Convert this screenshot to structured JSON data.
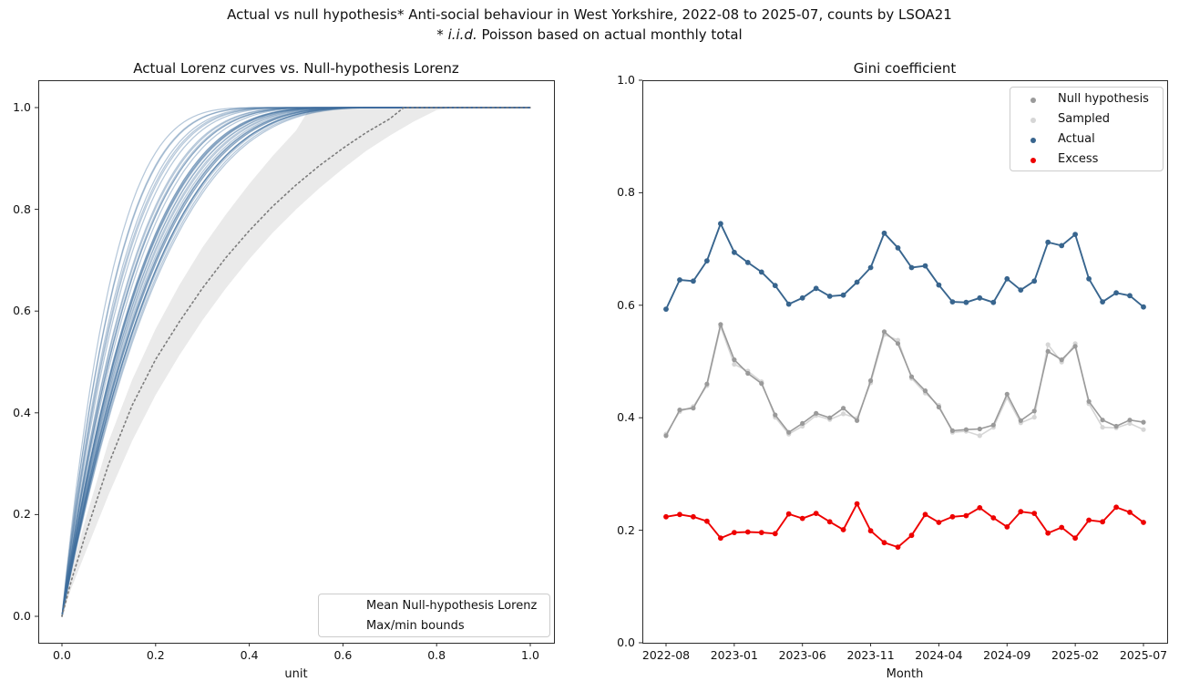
{
  "figure": {
    "title": "Actual vs null hypothesis* Anti-social behaviour in West Yorkshire, 2022-08 to 2025-07, counts by LSOA21",
    "subtitle_italic": "* i.i.d.",
    "subtitle_rest": " Poisson based on actual monthly total"
  },
  "chart_data": [
    {
      "type": "line",
      "title": "Actual Lorenz curves vs. Null-hypothesis Lorenz",
      "xlabel": "unit",
      "ylabel": "",
      "xlim": [
        0,
        1
      ],
      "ylim": [
        0,
        1
      ],
      "xticks": [
        "0.0",
        "0.2",
        "0.4",
        "0.6",
        "0.8",
        "1.0"
      ],
      "yticks": [
        "0.0",
        "0.2",
        "0.4",
        "0.6",
        "0.8",
        "1.0"
      ],
      "legend": [
        "Mean Null-hypothesis Lorenz",
        "Max/min bounds"
      ],
      "legend_position": "lower right",
      "grid": false,
      "colors": {
        "actual_curves": "#3f6f9e",
        "mean_line": "#7d7d7d",
        "band_fill": "#e8e8e8"
      },
      "mean_null_lorenz": {
        "x": [
          0,
          0.02,
          0.05,
          0.1,
          0.15,
          0.2,
          0.25,
          0.3,
          0.35,
          0.4,
          0.45,
          0.5,
          0.55,
          0.6,
          0.65,
          0.7,
          0.73,
          1.0
        ],
        "y": [
          0,
          0.07,
          0.16,
          0.3,
          0.415,
          0.505,
          0.578,
          0.645,
          0.705,
          0.758,
          0.806,
          0.848,
          0.886,
          0.92,
          0.951,
          0.978,
          1.0,
          1.0
        ]
      },
      "max_bound": {
        "x": [
          0,
          0.02,
          0.05,
          0.1,
          0.15,
          0.2,
          0.25,
          0.3,
          0.35,
          0.4,
          0.45,
          0.5,
          0.53,
          1.0
        ],
        "y": [
          0,
          0.09,
          0.19,
          0.345,
          0.465,
          0.565,
          0.65,
          0.725,
          0.79,
          0.85,
          0.905,
          0.955,
          1.0,
          1.0
        ]
      },
      "min_bound": {
        "x": [
          0,
          0.02,
          0.05,
          0.1,
          0.15,
          0.2,
          0.25,
          0.3,
          0.35,
          0.4,
          0.45,
          0.5,
          0.55,
          0.6,
          0.65,
          0.7,
          0.75,
          0.8,
          0.84,
          1.0
        ],
        "y": [
          0,
          0.055,
          0.125,
          0.24,
          0.345,
          0.435,
          0.512,
          0.582,
          0.645,
          0.702,
          0.754,
          0.8,
          0.842,
          0.88,
          0.915,
          0.945,
          0.972,
          0.995,
          1.0,
          1.0
        ]
      },
      "note": "36 semi-transparent monthly Actual Lorenz curves, one per month 2022-08..2025-07"
    },
    {
      "type": "line",
      "title": "Gini coefficient",
      "xlabel": "Month",
      "ylabel": "",
      "ylim": [
        0,
        1
      ],
      "yticks": [
        "0.0",
        "0.2",
        "0.4",
        "0.6",
        "0.8",
        "1.0"
      ],
      "xticks": [
        "2022-08",
        "2023-01",
        "2023-06",
        "2023-11",
        "2024-04",
        "2024-09",
        "2025-02",
        "2025-07"
      ],
      "xtick_month_index": [
        0,
        5,
        10,
        15,
        20,
        25,
        30,
        35
      ],
      "legend_position": "upper right",
      "grid": false,
      "x": [
        "2022-08",
        "2022-09",
        "2022-10",
        "2022-11",
        "2022-12",
        "2023-01",
        "2023-02",
        "2023-03",
        "2023-04",
        "2023-05",
        "2023-06",
        "2023-07",
        "2023-08",
        "2023-09",
        "2023-10",
        "2023-11",
        "2023-12",
        "2024-01",
        "2024-02",
        "2024-03",
        "2024-04",
        "2024-05",
        "2024-06",
        "2024-07",
        "2024-08",
        "2024-09",
        "2024-10",
        "2024-11",
        "2024-12",
        "2025-01",
        "2025-02",
        "2025-03",
        "2025-04",
        "2025-05",
        "2025-06",
        "2025-07"
      ],
      "series": [
        {
          "name": "Null hypothesis",
          "color": "#9a9a9a",
          "values": [
            0.368,
            0.414,
            0.417,
            0.46,
            0.566,
            0.503,
            0.479,
            0.461,
            0.405,
            0.374,
            0.39,
            0.408,
            0.4,
            0.417,
            0.395,
            0.466,
            0.553,
            0.532,
            0.473,
            0.448,
            0.419,
            0.377,
            0.379,
            0.38,
            0.387,
            0.442,
            0.395,
            0.412,
            0.518,
            0.503,
            0.527,
            0.429,
            0.396,
            0.385,
            0.396,
            0.392
          ]
        },
        {
          "name": "Sampled",
          "color": "#d6d6d6",
          "values": [
            0.371,
            0.411,
            0.42,
            0.457,
            0.562,
            0.495,
            0.483,
            0.464,
            0.401,
            0.371,
            0.385,
            0.404,
            0.397,
            0.407,
            0.399,
            0.462,
            0.548,
            0.538,
            0.47,
            0.444,
            0.422,
            0.374,
            0.376,
            0.368,
            0.383,
            0.436,
            0.391,
            0.401,
            0.53,
            0.499,
            0.532,
            0.425,
            0.383,
            0.382,
            0.39,
            0.379
          ]
        },
        {
          "name": "Actual",
          "color": "#38658e",
          "values": [
            0.593,
            0.645,
            0.643,
            0.679,
            0.745,
            0.694,
            0.676,
            0.659,
            0.635,
            0.602,
            0.613,
            0.63,
            0.616,
            0.618,
            0.641,
            0.667,
            0.728,
            0.702,
            0.667,
            0.67,
            0.636,
            0.606,
            0.605,
            0.613,
            0.605,
            0.647,
            0.627,
            0.643,
            0.712,
            0.706,
            0.726,
            0.647,
            0.606,
            0.622,
            0.617,
            0.597
          ]
        },
        {
          "name": "Excess",
          "color": "#ee0000",
          "values": [
            0.224,
            0.228,
            0.224,
            0.216,
            0.186,
            0.196,
            0.197,
            0.196,
            0.194,
            0.229,
            0.221,
            0.23,
            0.215,
            0.201,
            0.247,
            0.199,
            0.178,
            0.17,
            0.191,
            0.228,
            0.214,
            0.224,
            0.226,
            0.24,
            0.222,
            0.206,
            0.233,
            0.23,
            0.195,
            0.205,
            0.186,
            0.218,
            0.215,
            0.241,
            0.232,
            0.214
          ]
        }
      ]
    }
  ]
}
